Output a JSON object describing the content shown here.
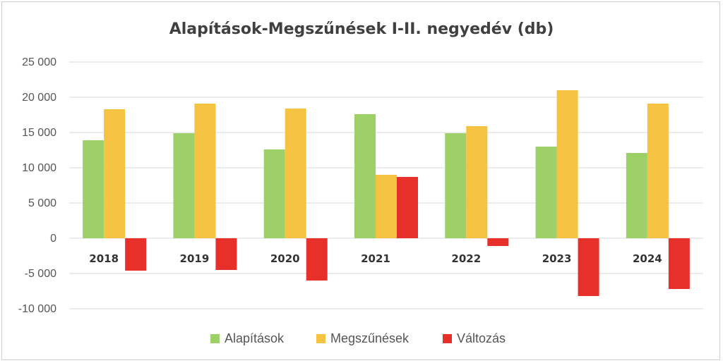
{
  "chart_data": {
    "type": "bar",
    "title": "Alapítások-Megszűnések I-II. negyedév (db)",
    "categories": [
      "2018",
      "2019",
      "2020",
      "2021",
      "2022",
      "2023",
      "2024"
    ],
    "series": [
      {
        "name": "Alapítások",
        "color": "#9dd067",
        "values": [
          13900,
          14900,
          12600,
          17600,
          14900,
          13000,
          12100
        ]
      },
      {
        "name": "Megszűnések",
        "color": "#f6c242",
        "values": [
          18300,
          19100,
          18400,
          9000,
          15900,
          21000,
          19100
        ]
      },
      {
        "name": "Változás",
        "color": "#e8302a",
        "values": [
          -4600,
          -4500,
          -6000,
          8700,
          -1100,
          -8200,
          -7200
        ]
      }
    ],
    "yticks": [
      "25 000",
      "20 000",
      "15 000",
      "10 000",
      "5 000",
      "0",
      "-5 000",
      "-10 000"
    ],
    "ylim": [
      -10000,
      25000
    ],
    "grid": true,
    "legend_position": "bottom"
  }
}
